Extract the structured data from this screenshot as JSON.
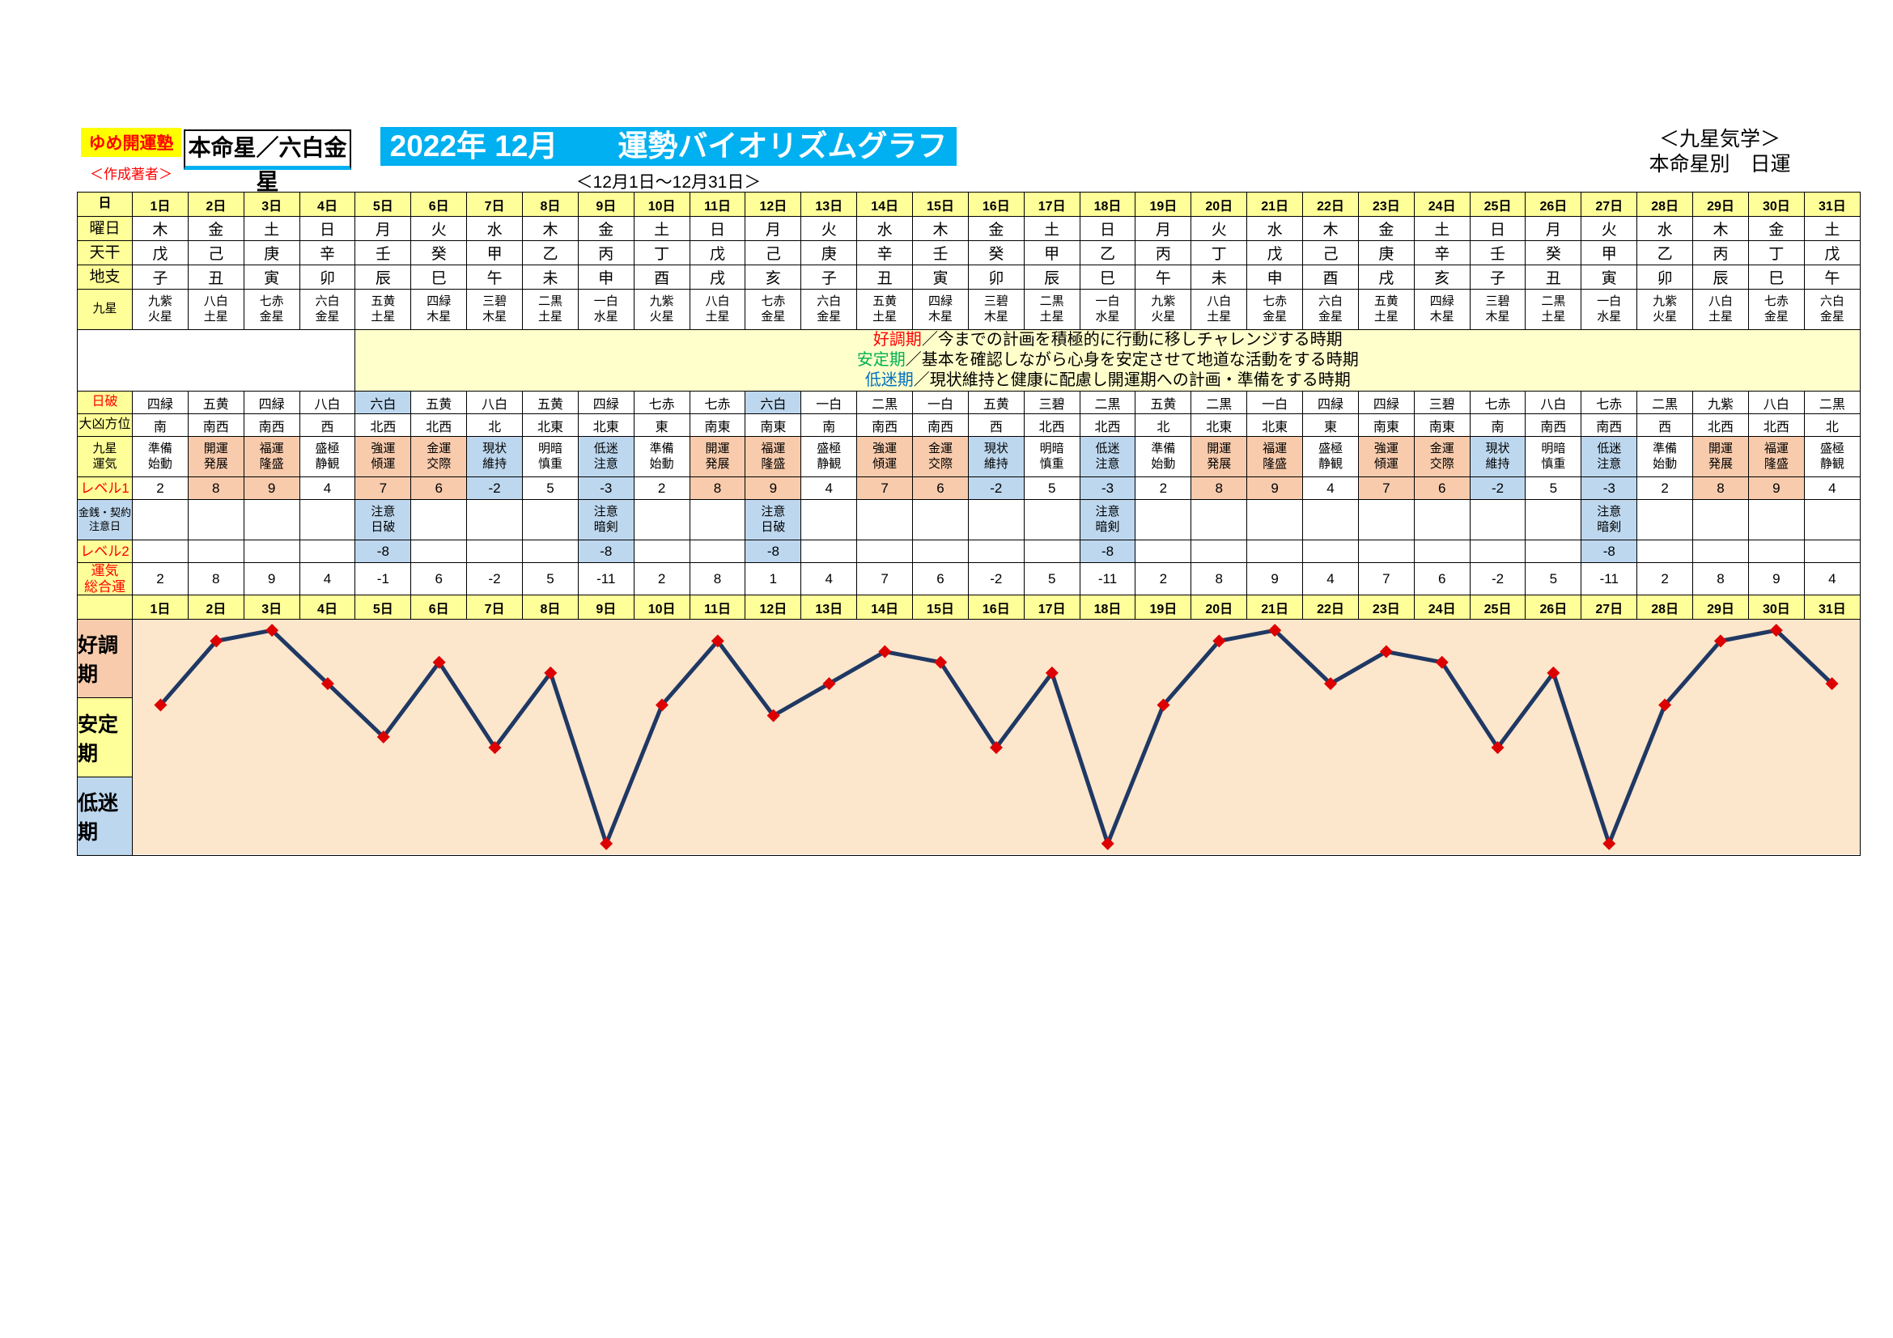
{
  "header": {
    "brand": "ゆめ開運塾",
    "author": "＜作成著者＞",
    "honmeisei": "本命星／六白金星",
    "title": "2022年 12月　　運勢バイオリズムグラフ",
    "school": "＜九星気学＞",
    "subtype": "本命星別　日運",
    "period": "＜12月1日～12月31日＞"
  },
  "colors": {
    "title_bg": "#00B0F0",
    "brand_bg": "#FFFF00",
    "header_cell_bg": "#FFFF99",
    "good_cell_bg": "#F8CBAD",
    "low_cell_bg": "#BDD7EE",
    "legend_bg": "#FFFFCC",
    "red_text": "#FF0000"
  },
  "legend": [
    {
      "term": "好調期",
      "color": "#FF0000",
      "desc": "／今までの計画を積極的に行動に移しチャレンジする時期"
    },
    {
      "term": "安定期",
      "color": "#00B050",
      "desc": "／基本を確認しながら心身を安定させて地道な活動をする時期"
    },
    {
      "term": "低迷期",
      "color": "#0070C0",
      "desc": "／現状維持と健康に配慮し開運期への計画・準備をする時期"
    }
  ],
  "table": {
    "days": [
      "1日",
      "2日",
      "3日",
      "4日",
      "5日",
      "6日",
      "7日",
      "8日",
      "9日",
      "10日",
      "11日",
      "12日",
      "13日",
      "14日",
      "15日",
      "16日",
      "17日",
      "18日",
      "19日",
      "20日",
      "21日",
      "22日",
      "23日",
      "24日",
      "25日",
      "26日",
      "27日",
      "28日",
      "29日",
      "30日",
      "31日"
    ],
    "rows": {
      "day_header": {
        "label": "日"
      },
      "weekday": {
        "label": "曜日",
        "sunday_color": "#FF0000",
        "values": [
          "木",
          "金",
          "土",
          "日",
          "月",
          "火",
          "水",
          "木",
          "金",
          "土",
          "日",
          "月",
          "火",
          "水",
          "木",
          "金",
          "土",
          "日",
          "月",
          "火",
          "水",
          "木",
          "金",
          "土",
          "日",
          "月",
          "火",
          "水",
          "木",
          "金",
          "土"
        ]
      },
      "tenkan": {
        "label": "天干",
        "values": [
          "戊",
          "己",
          "庚",
          "辛",
          "壬",
          "癸",
          "甲",
          "乙",
          "丙",
          "丁",
          "戊",
          "己",
          "庚",
          "辛",
          "壬",
          "癸",
          "甲",
          "乙",
          "丙",
          "丁",
          "戊",
          "己",
          "庚",
          "辛",
          "壬",
          "癸",
          "甲",
          "乙",
          "丙",
          "丁",
          "戊"
        ]
      },
      "chishi": {
        "label": "地支",
        "values": [
          "子",
          "丑",
          "寅",
          "卯",
          "辰",
          "巳",
          "午",
          "未",
          "申",
          "酉",
          "戌",
          "亥",
          "子",
          "丑",
          "寅",
          "卯",
          "辰",
          "巳",
          "午",
          "未",
          "申",
          "酉",
          "戌",
          "亥",
          "子",
          "丑",
          "寅",
          "卯",
          "辰",
          "巳",
          "午"
        ]
      },
      "kyusei": {
        "label": "九星",
        "values": [
          "九紫\n火星",
          "八白\n土星",
          "七赤\n金星",
          "六白\n金星",
          "五黄\n土星",
          "四緑\n木星",
          "三碧\n木星",
          "二黒\n土星",
          "一白\n水星",
          "九紫\n火星",
          "八白\n土星",
          "七赤\n金星",
          "六白\n金星",
          "五黄\n土星",
          "四緑\n木星",
          "三碧\n木星",
          "二黒\n土星",
          "一白\n水星",
          "九紫\n火星",
          "八白\n土星",
          "七赤\n金星",
          "六白\n金星",
          "五黄\n土星",
          "四緑\n木星",
          "三碧\n木星",
          "二黒\n土星",
          "一白\n水星",
          "九紫\n火星",
          "八白\n土星",
          "七赤\n金星",
          "六白\n金星"
        ]
      },
      "nippa": {
        "label": "日破",
        "text_color": "#FF0000",
        "highlight_star": "六白",
        "values": [
          "四緑",
          "五黄",
          "四緑",
          "八白",
          "六白",
          "五黄",
          "八白",
          "五黄",
          "四緑",
          "七赤",
          "七赤",
          "六白",
          "一白",
          "二黒",
          "一白",
          "五黄",
          "三碧",
          "二黒",
          "五黄",
          "二黒",
          "一白",
          "四緑",
          "四緑",
          "三碧",
          "七赤",
          "八白",
          "七赤",
          "二黒",
          "九紫",
          "八白",
          "二黒"
        ]
      },
      "daikyo": {
        "label": "大凶方位",
        "values": [
          "南",
          "南西",
          "南西",
          "西",
          "北西",
          "北西",
          "北",
          "北東",
          "北東",
          "東",
          "南東",
          "南東",
          "南",
          "南西",
          "南西",
          "西",
          "北西",
          "北西",
          "北",
          "北東",
          "北東",
          "東",
          "南東",
          "南東",
          "南",
          "南西",
          "南西",
          "西",
          "北西",
          "北西",
          "北"
        ]
      },
      "unki": {
        "label": "九星\n運気",
        "values": [
          "準備\n始動",
          "開運\n発展",
          "福運\n隆盛",
          "盛極\n静観",
          "強運\n傾運",
          "金運\n交際",
          "現状\n維持",
          "明暗\n慎重",
          "低迷\n注意",
          "準備\n始動",
          "開運\n発展",
          "福運\n隆盛",
          "盛極\n静観",
          "強運\n傾運",
          "金運\n交際",
          "現状\n維持",
          "明暗\n慎重",
          "低迷\n注意",
          "準備\n始動",
          "開運\n発展",
          "福運\n隆盛",
          "盛極\n静観",
          "強運\n傾運",
          "金運\n交際",
          "現状\n維持",
          "明暗\n慎重",
          "低迷\n注意",
          "準備\n始動",
          "開運\n発展",
          "福運\n隆盛",
          "盛極\n静観"
        ]
      },
      "level1": {
        "label": "レベル1",
        "values": [
          2,
          8,
          9,
          4,
          7,
          6,
          -2,
          5,
          -3,
          2,
          8,
          9,
          4,
          7,
          6,
          -2,
          5,
          -3,
          2,
          8,
          9,
          4,
          7,
          6,
          -2,
          5,
          -3,
          2,
          8,
          9,
          4
        ]
      },
      "caution": {
        "label": "金銭・契約\n注意日",
        "values": [
          "",
          "",
          "",
          "",
          "注意\n日破",
          "",
          "",
          "",
          "注意\n暗剣",
          "",
          "",
          "注意\n日破",
          "",
          "",
          "",
          "",
          "",
          "注意\n暗剣",
          "",
          "",
          "",
          "",
          "",
          "",
          "",
          "",
          "注意\n暗剣",
          "",
          "",
          "",
          ""
        ]
      },
      "level2": {
        "label": "レベル2",
        "values": [
          "",
          "",
          "",
          "",
          "-8",
          "",
          "",
          "",
          "-8",
          "",
          "",
          "-8",
          "",
          "",
          "",
          "",
          "",
          "-8",
          "",
          "",
          "",
          "",
          "",
          "",
          "",
          "",
          "-8",
          "",
          "",
          "",
          ""
        ]
      },
      "total": {
        "label": "運気\n総合運",
        "values": [
          2,
          8,
          9,
          4,
          -1,
          6,
          -2,
          5,
          -11,
          2,
          8,
          1,
          4,
          7,
          6,
          -2,
          5,
          -11,
          2,
          8,
          9,
          4,
          7,
          6,
          -2,
          5,
          -11,
          2,
          8,
          9,
          4
        ]
      }
    }
  },
  "chart_data": {
    "type": "line",
    "title": "運勢バイオリズムグラフ 2022年12月 六白金星 日運",
    "x_labels": [
      "1日",
      "2日",
      "3日",
      "4日",
      "5日",
      "6日",
      "7日",
      "8日",
      "9日",
      "10日",
      "11日",
      "12日",
      "13日",
      "14日",
      "15日",
      "16日",
      "17日",
      "18日",
      "19日",
      "20日",
      "21日",
      "22日",
      "23日",
      "24日",
      "25日",
      "26日",
      "27日",
      "28日",
      "29日",
      "30日",
      "31日"
    ],
    "values": [
      2,
      8,
      9,
      4,
      -1,
      6,
      -2,
      5,
      -11,
      2,
      8,
      1,
      4,
      7,
      6,
      -2,
      5,
      -11,
      2,
      8,
      9,
      4,
      7,
      6,
      -2,
      5,
      -11,
      2,
      8,
      9,
      4
    ],
    "ylim": [
      -12,
      10
    ],
    "grid": false,
    "legend_position": "left-bands",
    "bands": [
      {
        "label": "好調期",
        "color": "#F8CBAD"
      },
      {
        "label": "安定期",
        "color": "#FFFF99"
      },
      {
        "label": "低迷期",
        "color": "#BDD7EE"
      }
    ],
    "line_color": "#1F3864",
    "marker": "diamond",
    "marker_color": "#DD0000",
    "plot_bg": "#FCE6CC"
  }
}
